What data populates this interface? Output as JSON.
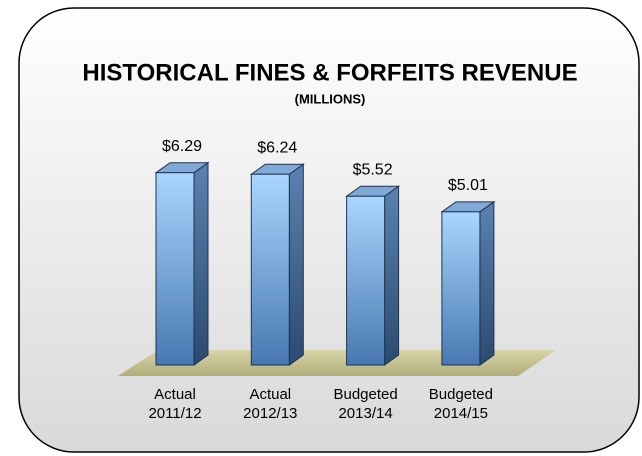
{
  "chart_data": {
    "type": "bar3d",
    "title": "HISTORICAL FINES & FORFEITS REVENUE",
    "subtitle": "(MILLIONS)",
    "categories": [
      "Actual 2011/12",
      "Actual 2012/13",
      "Budgeted 2013/14",
      "Budgeted 2014/15"
    ],
    "values": [
      6.29,
      6.24,
      5.52,
      5.01
    ],
    "value_labels": [
      "$6.29",
      "$6.24",
      "$5.52",
      "$5.01"
    ],
    "color": "#8ec4f5",
    "ylim": [
      0,
      7
    ]
  }
}
